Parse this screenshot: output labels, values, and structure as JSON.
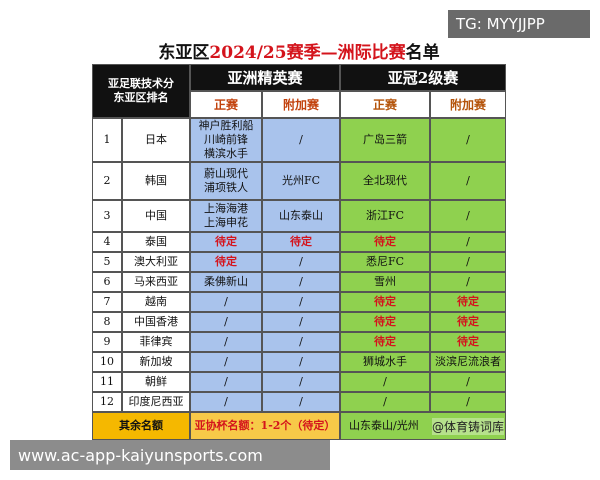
{
  "title": {
    "prefix": "东亚区",
    "highlight": "2024/25赛季—洲际比赛",
    "suffix": "名单"
  },
  "header": {
    "rank_label": [
      "亚足联技术分",
      "东亚区排名"
    ],
    "groups": [
      "亚洲精英赛",
      "亚冠2级赛"
    ],
    "subcolumns": [
      "正赛",
      "附加赛",
      "正赛",
      "附加赛"
    ]
  },
  "rows": [
    {
      "rank": 1,
      "country": "日本",
      "cells": [
        [
          "神户胜利船",
          "川崎前锋",
          "横滨水手"
        ],
        [
          "/"
        ],
        [
          "广岛三箭"
        ],
        [
          "/"
        ]
      ]
    },
    {
      "rank": 2,
      "country": "韩国",
      "cells": [
        [
          "蔚山现代",
          "浦项铁人"
        ],
        [
          "光州FC"
        ],
        [
          "全北现代"
        ],
        [
          "/"
        ]
      ]
    },
    {
      "rank": 3,
      "country": "中国",
      "cells": [
        [
          "上海海港",
          "上海申花"
        ],
        [
          "山东泰山"
        ],
        [
          "浙江FC"
        ],
        [
          "/"
        ]
      ]
    },
    {
      "rank": 4,
      "country": "泰国",
      "cells": [
        [
          "待定"
        ],
        [
          "待定"
        ],
        [
          "待定"
        ],
        [
          "/"
        ]
      ]
    },
    {
      "rank": 5,
      "country": "澳大利亚",
      "cells": [
        [
          "待定"
        ],
        [
          "/"
        ],
        [
          "悉尼FC"
        ],
        [
          "/"
        ]
      ]
    },
    {
      "rank": 6,
      "country": "马来西亚",
      "cells": [
        [
          "柔佛新山"
        ],
        [
          "/"
        ],
        [
          "雪州"
        ],
        [
          "/"
        ]
      ]
    },
    {
      "rank": 7,
      "country": "越南",
      "cells": [
        [
          "/"
        ],
        [
          "/"
        ],
        [
          "待定"
        ],
        [
          "待定"
        ]
      ]
    },
    {
      "rank": 8,
      "country": "中国香港",
      "cells": [
        [
          "/"
        ],
        [
          "/"
        ],
        [
          "待定"
        ],
        [
          "待定"
        ]
      ]
    },
    {
      "rank": 9,
      "country": "菲律宾",
      "cells": [
        [
          "/"
        ],
        [
          "/"
        ],
        [
          "待定"
        ],
        [
          "待定"
        ]
      ]
    },
    {
      "rank": 10,
      "country": "新加坡",
      "cells": [
        [
          "/"
        ],
        [
          "/"
        ],
        [
          "狮城水手"
        ],
        [
          "淡滨尼流浪者"
        ]
      ]
    },
    {
      "rank": 11,
      "country": "朝鲜",
      "cells": [
        [
          "/"
        ],
        [
          "/"
        ],
        [
          "/"
        ],
        [
          "/"
        ]
      ]
    },
    {
      "rank": 12,
      "country": "印度尼西亚",
      "cells": [
        [
          "/"
        ],
        [
          "/"
        ],
        [
          "/"
        ],
        [
          "/"
        ]
      ]
    }
  ],
  "footer": {
    "label": "其余名额",
    "elite_note": "亚协杯名额：1-2个（待定）",
    "acl2_note": "山东泰山/光州"
  },
  "watermarks": {
    "top_right": "TG: MYYJJPP",
    "bottom_left": "www.ac-app-kaiyunsports.com",
    "corner": "@体育铸词库"
  }
}
